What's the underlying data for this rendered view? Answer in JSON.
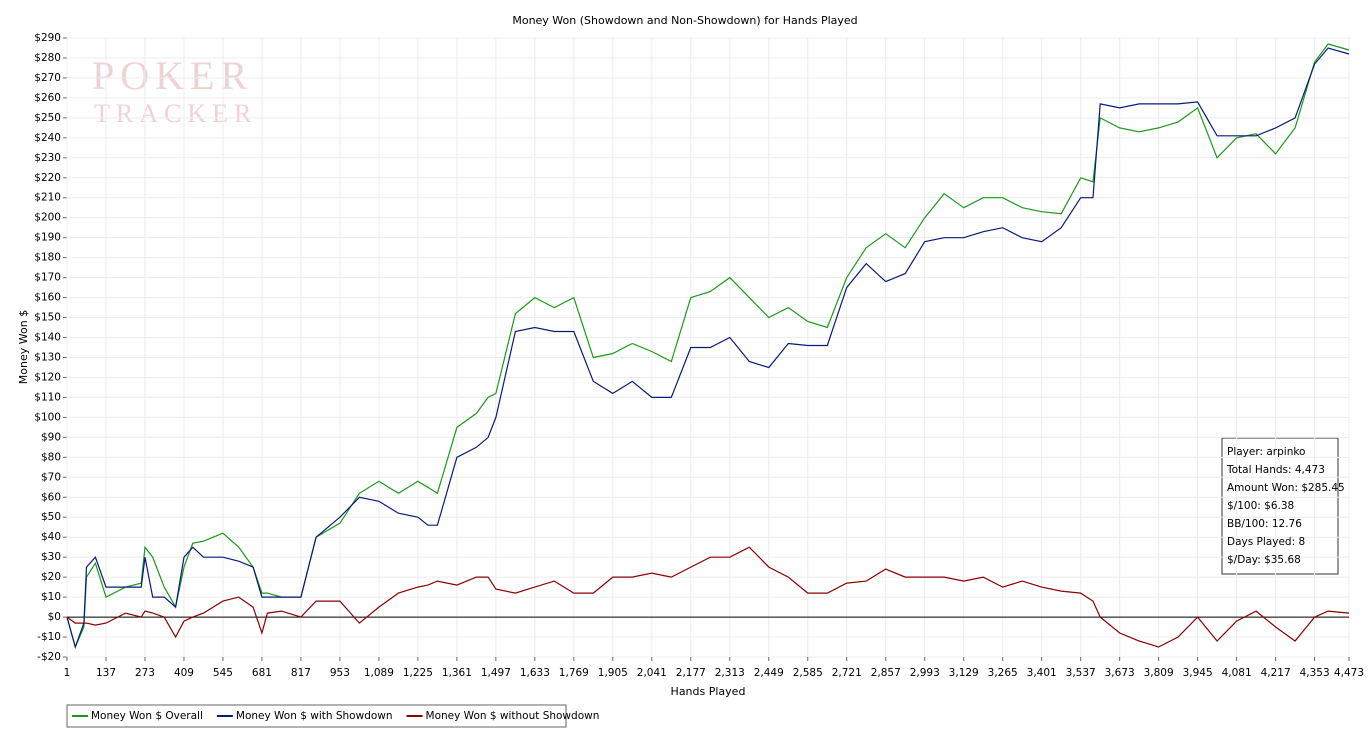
{
  "chart_data": {
    "type": "line",
    "title": "Money Won (Showdown and Non-Showdown) for Hands Played",
    "xlabel": "Hands Played",
    "ylabel": "Money Won $",
    "watermark": [
      "POKER",
      "TRACKER"
    ],
    "stats": [
      "Player: arpinko",
      "Total Hands: 4,473",
      "Amount Won: $285.45",
      "$/100: $6.38",
      "BB/100: 12.76",
      "Days Played: 8",
      "$/Day: $35.68"
    ],
    "grid": true,
    "zero_line": true,
    "legend": "bottom-left",
    "xlim": [
      1,
      4473
    ],
    "ylim": [
      -20,
      290
    ],
    "xticks": [
      1,
      137,
      273,
      409,
      545,
      681,
      817,
      953,
      {
        "value": 1089,
        "label": "1,089"
      },
      {
        "value": 1225,
        "label": "1,225"
      },
      {
        "value": 1361,
        "label": "1,361"
      },
      {
        "value": 1497,
        "label": "1,497"
      },
      {
        "value": 1633,
        "label": "1,633"
      },
      {
        "value": 1769,
        "label": "1,769"
      },
      {
        "value": 1905,
        "label": "1,905"
      },
      {
        "value": 2041,
        "label": "2,041"
      },
      {
        "value": 2177,
        "label": "2,177"
      },
      {
        "value": 2313,
        "label": "2,313"
      },
      {
        "value": 2449,
        "label": "2,449"
      },
      {
        "value": 2585,
        "label": "2,585"
      },
      {
        "value": 2721,
        "label": "2,721"
      },
      {
        "value": 2857,
        "label": "2,857"
      },
      {
        "value": 2993,
        "label": "2,993"
      },
      {
        "value": 3129,
        "label": "3,129"
      },
      {
        "value": 3265,
        "label": "3,265"
      },
      {
        "value": 3401,
        "label": "3,401"
      },
      {
        "value": 3537,
        "label": "3,537"
      },
      {
        "value": 3673,
        "label": "3,673"
      },
      {
        "value": 3809,
        "label": "3,809"
      },
      {
        "value": 3945,
        "label": "3,945"
      },
      {
        "value": 4081,
        "label": "4,081"
      },
      {
        "value": 4217,
        "label": "4,217"
      },
      {
        "value": 4353,
        "label": "4,353"
      },
      {
        "value": 4473,
        "label": "4,473"
      }
    ],
    "yticks": [
      {
        "value": -20,
        "label": "-$20"
      },
      {
        "value": -10,
        "label": "-$10"
      },
      {
        "value": 0,
        "label": "$0"
      },
      {
        "value": 10,
        "label": "$10"
      },
      {
        "value": 20,
        "label": "$20"
      },
      {
        "value": 30,
        "label": "$30"
      },
      {
        "value": 40,
        "label": "$40"
      },
      {
        "value": 50,
        "label": "$50"
      },
      {
        "value": 60,
        "label": "$60"
      },
      {
        "value": 70,
        "label": "$70"
      },
      {
        "value": 80,
        "label": "$80"
      },
      {
        "value": 90,
        "label": "$90"
      },
      {
        "value": 100,
        "label": "$100"
      },
      {
        "value": 110,
        "label": "$110"
      },
      {
        "value": 120,
        "label": "$120"
      },
      {
        "value": 130,
        "label": "$130"
      },
      {
        "value": 140,
        "label": "$140"
      },
      {
        "value": 150,
        "label": "$150"
      },
      {
        "value": 160,
        "label": "$160"
      },
      {
        "value": 170,
        "label": "$170"
      },
      {
        "value": 180,
        "label": "$180"
      },
      {
        "value": 190,
        "label": "$190"
      },
      {
        "value": 200,
        "label": "$200"
      },
      {
        "value": 210,
        "label": "$210"
      },
      {
        "value": 220,
        "label": "$220"
      },
      {
        "value": 230,
        "label": "$230"
      },
      {
        "value": 240,
        "label": "$240"
      },
      {
        "value": 250,
        "label": "$250"
      },
      {
        "value": 260,
        "label": "$260"
      },
      {
        "value": 270,
        "label": "$270"
      },
      {
        "value": 280,
        "label": "$280"
      },
      {
        "value": 290,
        "label": "$290"
      }
    ],
    "x": [
      1,
      30,
      60,
      69,
      100,
      137,
      205,
      260,
      273,
      300,
      340,
      380,
      409,
      440,
      477,
      545,
      600,
      650,
      681,
      700,
      749,
      817,
      870,
      953,
      1021,
      1089,
      1157,
      1225,
      1260,
      1293,
      1361,
      1429,
      1470,
      1497,
      1565,
      1633,
      1701,
      1769,
      1837,
      1905,
      1973,
      2041,
      2109,
      2177,
      2245,
      2313,
      2381,
      2449,
      2517,
      2585,
      2653,
      2721,
      2789,
      2857,
      2925,
      2993,
      3061,
      3129,
      3197,
      3265,
      3333,
      3401,
      3469,
      3537,
      3580,
      3605,
      3673,
      3741,
      3809,
      3877,
      3945,
      4013,
      4081,
      4149,
      4217,
      4285,
      4353,
      4400,
      4473
    ],
    "series": [
      {
        "name": "Money Won $ Overall",
        "color": "#1a9a1a",
        "values": [
          0,
          -15,
          -5,
          20,
          27,
          10,
          15,
          17,
          35,
          30,
          15,
          5,
          25,
          37,
          38,
          42,
          35,
          25,
          12,
          12,
          10,
          10,
          40,
          47,
          62,
          68,
          62,
          68,
          65,
          62,
          95,
          102,
          110,
          112,
          152,
          160,
          155,
          160,
          130,
          132,
          137,
          133,
          128,
          160,
          163,
          170,
          160,
          150,
          155,
          148,
          145,
          170,
          185,
          192,
          185,
          200,
          212,
          205,
          210,
          210,
          205,
          203,
          202,
          220,
          218,
          250,
          245,
          243,
          245,
          248,
          255,
          230,
          240,
          242,
          232,
          245,
          278,
          287,
          284
        ]
      },
      {
        "name": "Money Won $ with Showdown",
        "color": "#0a1a7a",
        "values": [
          0,
          -15,
          -3,
          25,
          30,
          15,
          15,
          15,
          30,
          10,
          10,
          5,
          30,
          35,
          30,
          30,
          28,
          25,
          10,
          10,
          10,
          10,
          40,
          50,
          60,
          58,
          52,
          50,
          46,
          46,
          80,
          85,
          90,
          100,
          143,
          145,
          143,
          143,
          118,
          112,
          118,
          110,
          110,
          135,
          135,
          140,
          128,
          125,
          137,
          136,
          136,
          165,
          177,
          168,
          172,
          188,
          190,
          190,
          193,
          195,
          190,
          188,
          195,
          210,
          210,
          257,
          255,
          257,
          257,
          257,
          258,
          241,
          241,
          241,
          245,
          250,
          277,
          285,
          282
        ]
      },
      {
        "name": "Money Won $ without Showdown",
        "color": "#8b0000",
        "values": [
          0,
          -3,
          -3,
          -3,
          -4,
          -3,
          2,
          0,
          3,
          2,
          0,
          -10,
          -2,
          0,
          2,
          8,
          10,
          5,
          -8,
          2,
          3,
          0,
          8,
          8,
          -3,
          5,
          12,
          15,
          16,
          18,
          16,
          20,
          20,
          14,
          12,
          15,
          18,
          12,
          12,
          20,
          20,
          22,
          20,
          25,
          30,
          30,
          35,
          25,
          20,
          12,
          12,
          17,
          18,
          24,
          20,
          20,
          20,
          18,
          20,
          15,
          18,
          15,
          13,
          12,
          8,
          0,
          -8,
          -12,
          -15,
          -10,
          0,
          -12,
          -2,
          3,
          -5,
          -12,
          0,
          3,
          2
        ]
      }
    ]
  }
}
